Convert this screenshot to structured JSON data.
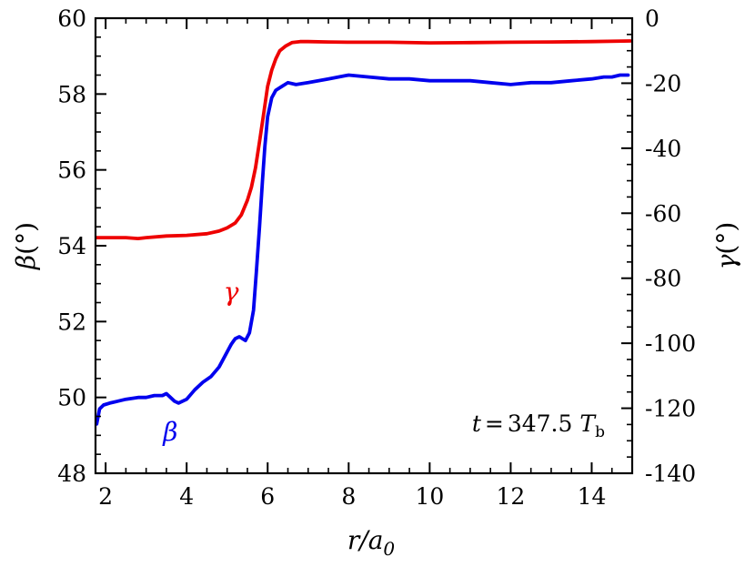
{
  "chart_data": {
    "type": "line",
    "xlabel": {
      "main": "r/a",
      "sub": "0"
    },
    "ylabel_left": {
      "main": "β",
      "unit": "(°)"
    },
    "ylabel_right": {
      "main": "γ",
      "unit": "(°)"
    },
    "xlim": [
      1.75,
      15
    ],
    "ylim_left": [
      48,
      60
    ],
    "ylim_right": [
      -140,
      0
    ],
    "xticks": [
      2,
      4,
      6,
      8,
      10,
      12,
      14
    ],
    "xtick_labels": [
      "2",
      "4",
      "6",
      "8",
      "10",
      "12",
      "14"
    ],
    "yticks_left": [
      48,
      50,
      52,
      54,
      56,
      58,
      60
    ],
    "ytick_labels_left": [
      "48",
      "50",
      "52",
      "54",
      "56",
      "58",
      "60"
    ],
    "yticks_right": [
      -140,
      -120,
      -100,
      -80,
      -60,
      -40,
      -20,
      0
    ],
    "ytick_labels_right": [
      "-140",
      "-120",
      "-100",
      "-80",
      "-60",
      "-40",
      "-20",
      "0"
    ],
    "annotation": {
      "prefix": "t",
      "equals": "=",
      "value": "347.5",
      "unit": "T",
      "unit_sub": "b"
    },
    "series": [
      {
        "name": "β",
        "axis": "left",
        "color": "#0000ee",
        "x": [
          1.78,
          1.85,
          1.95,
          2.1,
          2.3,
          2.5,
          2.8,
          3.0,
          3.2,
          3.4,
          3.5,
          3.6,
          3.7,
          3.8,
          4.0,
          4.2,
          4.4,
          4.6,
          4.8,
          4.95,
          5.1,
          5.2,
          5.3,
          5.45,
          5.55,
          5.65,
          5.72,
          5.8,
          5.87,
          5.93,
          6.0,
          6.1,
          6.2,
          6.35,
          6.5,
          6.7,
          7.0,
          7.5,
          8.0,
          8.5,
          9.0,
          9.5,
          10.0,
          10.5,
          11.0,
          11.5,
          12.0,
          12.5,
          13.0,
          13.5,
          14.0,
          14.3,
          14.5,
          14.7,
          14.9
        ],
        "values": [
          49.3,
          49.7,
          49.8,
          49.85,
          49.9,
          49.95,
          50.0,
          50.0,
          50.05,
          50.05,
          50.1,
          50.0,
          49.9,
          49.85,
          49.95,
          50.2,
          50.4,
          50.55,
          50.8,
          51.1,
          51.4,
          51.55,
          51.6,
          51.5,
          51.7,
          52.3,
          53.3,
          54.5,
          55.7,
          56.6,
          57.4,
          57.9,
          58.1,
          58.2,
          58.3,
          58.25,
          58.3,
          58.4,
          58.5,
          58.45,
          58.4,
          58.4,
          58.35,
          58.35,
          58.35,
          58.3,
          58.25,
          58.3,
          58.3,
          58.35,
          58.4,
          58.45,
          58.45,
          58.5,
          58.5
        ]
      },
      {
        "name": "γ",
        "axis": "right",
        "color": "#ee0000",
        "x": [
          1.78,
          2.0,
          2.5,
          2.8,
          3.0,
          3.5,
          4.0,
          4.5,
          4.8,
          5.0,
          5.2,
          5.35,
          5.5,
          5.6,
          5.7,
          5.8,
          5.9,
          6.0,
          6.1,
          6.2,
          6.3,
          6.45,
          6.6,
          6.8,
          7.0,
          7.5,
          8.0,
          9.0,
          10.0,
          11.0,
          12.0,
          13.0,
          14.0,
          14.95
        ],
        "values": [
          -67.5,
          -67.5,
          -67.5,
          -67.8,
          -67.5,
          -67.0,
          -66.8,
          -66.3,
          -65.5,
          -64.5,
          -63.0,
          -60.5,
          -56.0,
          -52.0,
          -46.0,
          -38.0,
          -29.5,
          -21.0,
          -16.0,
          -12.5,
          -10.0,
          -8.5,
          -7.5,
          -7.2,
          -7.2,
          -7.3,
          -7.4,
          -7.4,
          -7.6,
          -7.5,
          -7.4,
          -7.3,
          -7.2,
          -7.0
        ]
      }
    ],
    "series_labels": [
      {
        "text": "γ",
        "color": "#ee0000",
        "x": 5.1,
        "y_left": 52.8
      },
      {
        "text": "β",
        "color": "#0000ee",
        "x": 3.6,
        "y_left": 49.1
      }
    ]
  }
}
